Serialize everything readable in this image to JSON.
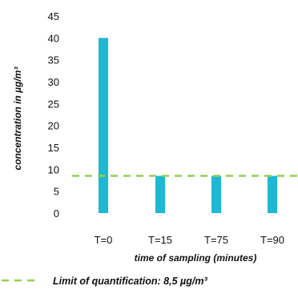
{
  "chart_data": {
    "type": "bar",
    "categories": [
      "T=0",
      "T=15",
      "T=75",
      "T=90"
    ],
    "values": [
      40,
      8.5,
      8.5,
      8.5
    ],
    "ylabel": "concentration in µg/m³",
    "xlabel": "time of sampling (minutes)",
    "ylim": [
      0,
      45
    ],
    "yticks": [
      0,
      5,
      10,
      15,
      20,
      25,
      30,
      35,
      40,
      45
    ],
    "bar_color": "#1fb8d3",
    "reference_line": {
      "value": 8.5,
      "color": "#92d050",
      "style": "dashed",
      "legend_label": "Limit of quantification: 8,5 µg/m³"
    },
    "grid": false,
    "legend_position": "bottom"
  }
}
